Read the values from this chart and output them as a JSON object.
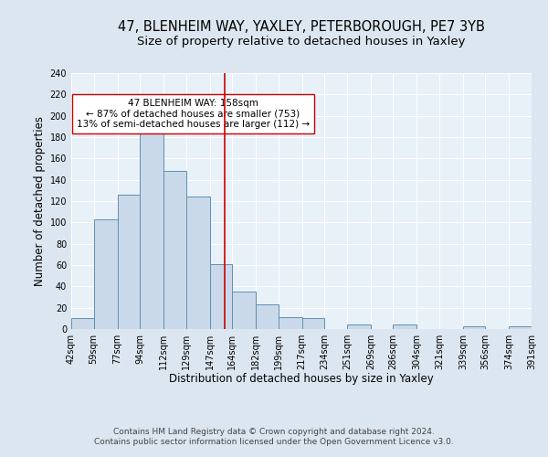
{
  "title": "47, BLENHEIM WAY, YAXLEY, PETERBOROUGH, PE7 3YB",
  "subtitle": "Size of property relative to detached houses in Yaxley",
  "xlabel": "Distribution of detached houses by size in Yaxley",
  "ylabel": "Number of detached properties",
  "bin_edges": [
    42,
    59,
    77,
    94,
    112,
    129,
    147,
    164,
    182,
    199,
    217,
    234,
    251,
    269,
    286,
    304,
    321,
    339,
    356,
    374,
    391
  ],
  "bar_heights": [
    10,
    103,
    126,
    199,
    148,
    124,
    61,
    35,
    23,
    11,
    10,
    0,
    4,
    0,
    4,
    0,
    0,
    3,
    0,
    3
  ],
  "bar_facecolor": "#c9d9ea",
  "bar_edgecolor": "#6090b0",
  "vline_x": 158,
  "vline_color": "#cc0000",
  "annotation_line1": "47 BLENHEIM WAY: 158sqm",
  "annotation_line2": "← 87% of detached houses are smaller (753)",
  "annotation_line3": "13% of semi-detached houses are larger (112) →",
  "annotation_box_edgecolor": "#cc0000",
  "annotation_box_facecolor": "#ffffff",
  "tick_labels": [
    "42sqm",
    "59sqm",
    "77sqm",
    "94sqm",
    "112sqm",
    "129sqm",
    "147sqm",
    "164sqm",
    "182sqm",
    "199sqm",
    "217sqm",
    "234sqm",
    "251sqm",
    "269sqm",
    "286sqm",
    "304sqm",
    "321sqm",
    "339sqm",
    "356sqm",
    "374sqm",
    "391sqm"
  ],
  "ylim": [
    0,
    240
  ],
  "yticks": [
    0,
    20,
    40,
    60,
    80,
    100,
    120,
    140,
    160,
    180,
    200,
    220,
    240
  ],
  "footer_line1": "Contains HM Land Registry data © Crown copyright and database right 2024.",
  "footer_line2": "Contains public sector information licensed under the Open Government Licence v3.0.",
  "background_color": "#dce6f0",
  "plot_background_color": "#e8f0f8",
  "grid_color": "#ffffff",
  "title_fontsize": 10.5,
  "subtitle_fontsize": 9.5,
  "axis_label_fontsize": 8.5,
  "tick_fontsize": 7,
  "annotation_fontsize": 7.5,
  "footer_fontsize": 6.5
}
